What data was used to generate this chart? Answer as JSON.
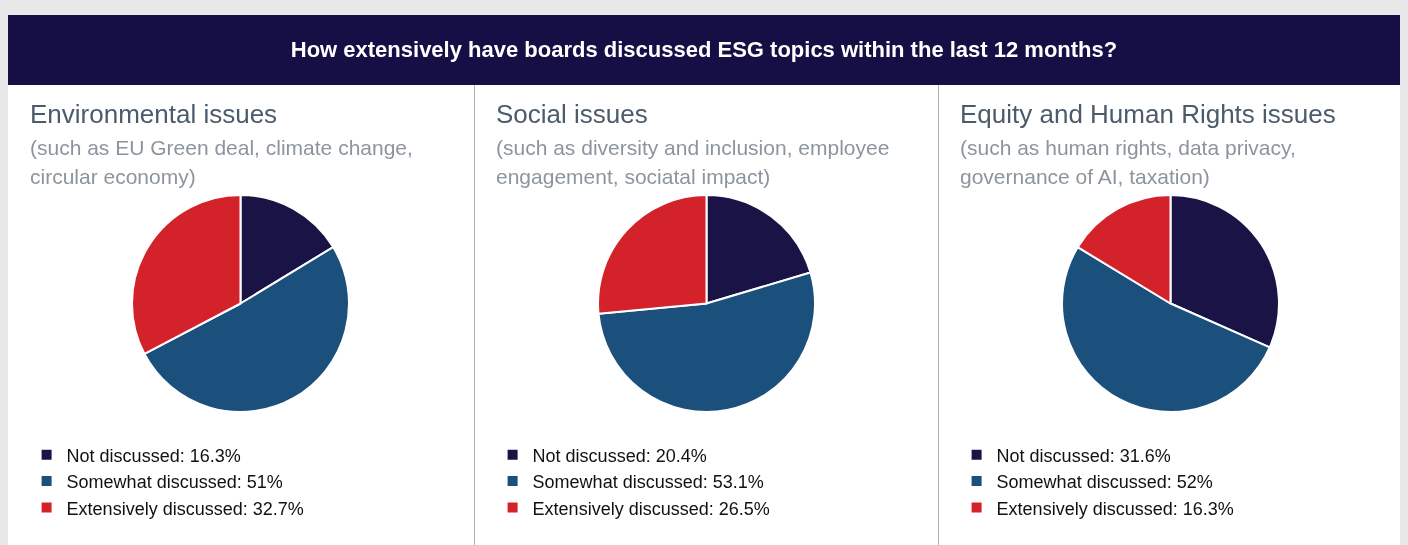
{
  "chart_data": [
    {
      "type": "pie",
      "title": "Environmental issues",
      "subtitle": "(such as EU Green deal, climate change, circular economy)",
      "annotations": [
        "How extensively have boards discussed ESG topics within the last 12 months?"
      ],
      "categories": [
        "Not discussed",
        "Somewhat discussed",
        "Extensively discussed"
      ],
      "values": [
        16.3,
        51,
        32.7
      ],
      "value_labels": [
        "16.3%",
        "51%",
        "32.7%"
      ],
      "colors": [
        "#1a1446",
        "#1b507c",
        "#d4222b"
      ],
      "legend": "bottom"
    },
    {
      "type": "pie",
      "title": "Social issues",
      "subtitle": "(such as diversity and inclusion, employee engagement, sociatal impact)",
      "categories": [
        "Not discussed",
        "Somewhat discussed",
        "Extensively discussed"
      ],
      "values": [
        20.4,
        53.1,
        26.5
      ],
      "value_labels": [
        "20.4%",
        "53.1%",
        "26.5%"
      ],
      "colors": [
        "#1a1446",
        "#1b507c",
        "#d4222b"
      ],
      "legend": "bottom"
    },
    {
      "type": "pie",
      "title": "Equity and Human Rights issues",
      "subtitle": "(such as human rights, data privacy, governance of AI, taxation)",
      "categories": [
        "Not discussed",
        "Somewhat discussed",
        "Extensively discussed"
      ],
      "values": [
        31.6,
        52,
        16.3
      ],
      "value_labels": [
        "31.6%",
        "52%",
        "16.3%"
      ],
      "colors": [
        "#1a1446",
        "#1b507c",
        "#d4222b"
      ],
      "legend": "bottom"
    }
  ]
}
